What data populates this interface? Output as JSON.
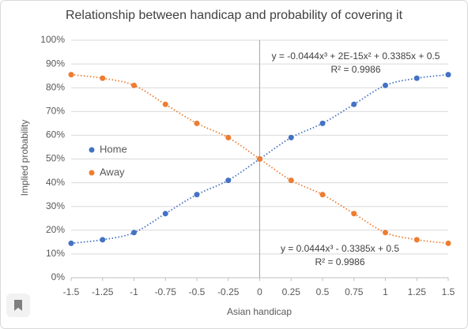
{
  "chart_data": {
    "type": "scatter",
    "title": "Relationship between handicap and probability of covering it",
    "x_label": "Asian handicap",
    "y_label": "Implied probability",
    "x": [
      -1.5,
      -1.25,
      -1,
      -0.75,
      -0.5,
      -0.25,
      0,
      0.25,
      0.5,
      0.75,
      1,
      1.25,
      1.5
    ],
    "series": [
      {
        "name": "Home",
        "color": "#4472c4",
        "values": [
          14.5,
          16,
          19,
          27,
          35,
          41,
          50,
          59,
          65,
          73,
          81,
          84,
          85.5
        ]
      },
      {
        "name": "Away",
        "color": "#ed7d31",
        "values": [
          85.5,
          84,
          81,
          73,
          65,
          59,
          50,
          41,
          35,
          27,
          19,
          16,
          14.5
        ]
      }
    ],
    "xlim": [
      -1.5,
      1.5
    ],
    "xticks": [
      -1.5,
      -1.25,
      -1,
      -0.75,
      -0.5,
      -0.25,
      0,
      0.25,
      0.5,
      0.75,
      1,
      1.25,
      1.5
    ],
    "ylim": [
      0,
      100
    ],
    "yticks": [
      {
        "value": 0,
        "label": "0%"
      },
      {
        "value": 10,
        "label": "10%"
      },
      {
        "value": 20,
        "label": "20%"
      },
      {
        "value": 30,
        "label": "30%"
      },
      {
        "value": 40,
        "label": "40%"
      },
      {
        "value": 50,
        "label": "50%"
      },
      {
        "value": 60,
        "label": "60%"
      },
      {
        "value": 70,
        "label": "70%"
      },
      {
        "value": 80,
        "label": "80%"
      },
      {
        "value": 90,
        "label": "90%"
      },
      {
        "value": 100,
        "label": "100%"
      }
    ],
    "grid": true,
    "legend": "left",
    "annotations": [
      "y = -0.0444x³ + 2E-15x² + 0.3385x + 0.5",
      "R² = 0.9986",
      "y = 0.0444x³ - 0.3385x + 0.5",
      "R² = 0.9986"
    ]
  }
}
